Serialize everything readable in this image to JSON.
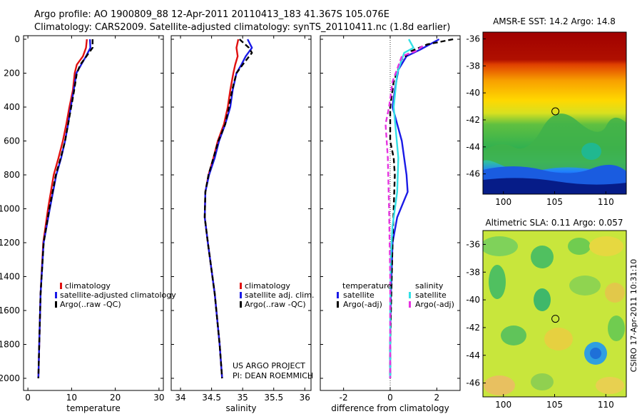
{
  "header": {
    "line1": "Argo profile: AO 1900809_88 12-Apr-2011 20110413_183 41.367S 105.076E",
    "line2": "Climatology: CARS2009. Satellite-adjusted climatology: synTS_20110411.nc (1.8d earlier)"
  },
  "side_caption": "CSIRO 17-Apr-2011 10:31:10",
  "colors": {
    "climatology": "#e01010",
    "satellite": "#1a1ae6",
    "argo": "#000000",
    "cyan": "#33e0e6",
    "magenta": "#e633e0"
  },
  "chart_data": [
    {
      "id": "temperature",
      "type": "line",
      "xlabel": "temperature",
      "ylabel": "",
      "xlim": [
        -1,
        31
      ],
      "ylim": [
        2050,
        0
      ],
      "xticks": [
        0,
        10,
        20,
        30
      ],
      "yticks": [
        0,
        200,
        400,
        600,
        800,
        1000,
        1200,
        1400,
        1600,
        1800,
        2000
      ],
      "series": [
        {
          "name": "climatology",
          "color": "climatology",
          "dash": false,
          "x": [
            13.5,
            13.3,
            12.6,
            11.2,
            10.7,
            10.3,
            9.5,
            8.8,
            8.0,
            7.0,
            5.9,
            4.6,
            3.5,
            2.9,
            2.6,
            2.4
          ],
          "y": [
            0,
            50,
            100,
            150,
            200,
            300,
            400,
            500,
            600,
            700,
            800,
            1000,
            1200,
            1500,
            1800,
            2000
          ]
        },
        {
          "name": "satellite-adjusted climatology",
          "color": "satellite",
          "dash": false,
          "x": [
            14.2,
            14.3,
            13.3,
            12.2,
            11.1,
            10.5,
            9.8,
            9.2,
            8.5,
            7.6,
            6.5,
            5.0,
            3.6,
            2.9,
            2.6,
            2.4
          ],
          "y": [
            0,
            50,
            100,
            150,
            200,
            300,
            400,
            500,
            600,
            700,
            800,
            1000,
            1200,
            1500,
            1800,
            2000
          ]
        },
        {
          "name": "Argo(..raw -QC)",
          "color": "argo",
          "dash": true,
          "x": [
            14.8,
            14.8,
            13.4,
            12.0,
            11.2,
            10.6,
            9.9,
            9.2,
            8.5,
            7.5,
            6.4,
            4.9,
            3.6,
            2.9,
            2.6,
            2.4
          ],
          "y": [
            0,
            50,
            100,
            150,
            200,
            300,
            400,
            500,
            600,
            700,
            800,
            1000,
            1200,
            1500,
            1800,
            2000
          ]
        }
      ],
      "legend": {
        "placement": "lower-right",
        "entries": [
          "climatology",
          "satellite-adjusted climatology",
          "Argo(..raw -QC)"
        ]
      }
    },
    {
      "id": "salinity",
      "type": "line",
      "xlabel": "salinity",
      "ylabel": "",
      "xlim": [
        33.85,
        36.1
      ],
      "ylim": [
        2050,
        0
      ],
      "xticks": [
        34,
        34.5,
        35,
        35.5,
        36
      ],
      "yticks": [
        0,
        200,
        400,
        600,
        800,
        1000,
        1200,
        1400,
        1600,
        1800,
        2000
      ],
      "series": [
        {
          "name": "climatology",
          "color": "climatology",
          "dash": false,
          "x": [
            34.93,
            34.9,
            34.92,
            34.88,
            34.85,
            34.8,
            34.76,
            34.7,
            34.6,
            34.53,
            34.45,
            34.4,
            34.39,
            34.44,
            34.55,
            34.63,
            34.67
          ],
          "y": [
            0,
            50,
            100,
            150,
            200,
            300,
            400,
            500,
            600,
            700,
            800,
            900,
            1050,
            1200,
            1500,
            1800,
            2000
          ]
        },
        {
          "name": "satellite adj. clim.",
          "color": "satellite",
          "dash": false,
          "x": [
            35.08,
            35.15,
            35.05,
            34.98,
            34.9,
            34.84,
            34.8,
            34.72,
            34.62,
            34.55,
            34.46,
            34.4,
            34.39,
            34.44,
            34.55,
            34.63,
            34.67
          ],
          "y": [
            0,
            50,
            100,
            150,
            200,
            300,
            400,
            500,
            600,
            700,
            800,
            900,
            1050,
            1200,
            1500,
            1800,
            2000
          ]
        },
        {
          "name": "Argo(..raw -QC)",
          "color": "argo",
          "dash": true,
          "x": [
            34.95,
            35.1,
            35.15,
            35.0,
            34.9,
            34.83,
            34.78,
            34.72,
            34.61,
            34.53,
            34.45,
            34.4,
            34.39,
            34.44,
            34.55,
            34.63,
            34.67
          ],
          "y": [
            0,
            50,
            80,
            150,
            200,
            300,
            400,
            500,
            600,
            700,
            800,
            900,
            1050,
            1200,
            1500,
            1800,
            2000
          ]
        }
      ],
      "legend": {
        "placement": "lower-right",
        "entries": [
          "climatology",
          "satellite adj. clim.",
          "Argo(..raw -QC)"
        ]
      },
      "annotation": [
        "US ARGO PROJECT",
        "PI: DEAN ROEMMICH"
      ]
    },
    {
      "id": "difference",
      "type": "line",
      "xlabel": "difference from climatology",
      "ylabel": "",
      "xlim": [
        -3,
        3
      ],
      "ylim": [
        2050,
        0
      ],
      "xticks": [
        -2,
        0,
        2
      ],
      "yticks": [
        0,
        200,
        400,
        600,
        800,
        1000,
        1200,
        1400,
        1600,
        1800,
        2000
      ],
      "zero_line": true,
      "series": [
        {
          "name": "temperature satellite",
          "color": "satellite",
          "dash": false,
          "x": [
            2.1,
            1.3,
            0.7,
            0.35,
            0.2,
            0.1,
            0.3,
            0.5,
            0.6,
            0.7,
            0.75,
            0.6,
            0.3,
            0.1,
            0.03,
            0.0,
            0.0
          ],
          "y": [
            0,
            60,
            100,
            180,
            300,
            400,
            500,
            600,
            700,
            800,
            900,
            950,
            1050,
            1200,
            1500,
            1800,
            2000
          ]
        },
        {
          "name": "temperature Argo(-adj)",
          "color": "argo",
          "dash": true,
          "x": [
            2.7,
            1.6,
            0.9,
            0.5,
            0.15,
            0.0,
            0.0,
            0.15,
            0.2,
            0.15,
            0.1,
            0.05,
            0.0,
            0.0
          ],
          "y": [
            0,
            30,
            70,
            120,
            250,
            400,
            600,
            700,
            800,
            1000,
            1200,
            1500,
            1800,
            2000
          ]
        },
        {
          "name": "salinity satellite",
          "color": "cyan",
          "dash": false,
          "x": [
            0.8,
            1.0,
            0.6,
            0.3,
            0.15,
            0.35,
            0.3,
            0.1,
            0.02,
            0.0,
            0.0
          ],
          "y": [
            0,
            50,
            80,
            200,
            400,
            700,
            900,
            1100,
            1300,
            1600,
            2000
          ]
        },
        {
          "name": "salinity Argo(-adj)",
          "color": "magenta",
          "dash": true,
          "x": [
            1.4,
            1.1,
            0.5,
            0.1,
            -0.05,
            -0.2,
            -0.1,
            -0.05,
            0.0,
            0.0
          ],
          "y": [
            40,
            70,
            100,
            250,
            400,
            500,
            700,
            1000,
            1400,
            2000
          ]
        }
      ],
      "legend": {
        "placement": "lower-center",
        "temperature_title": "temperature",
        "salinity_title": "salinity",
        "temperature_entries": [
          "satellite",
          "Argo(-adj)"
        ],
        "salinity_entries": [
          "satellite",
          "Argo(-adj)"
        ]
      }
    },
    {
      "id": "sst-map",
      "type": "heatmap",
      "title": "AMSR-E SST: 14.2 Argo: 14.8",
      "xlim": [
        98,
        112
      ],
      "ylim": [
        -47.5,
        -35.5
      ],
      "xticks": [
        100,
        105,
        110
      ],
      "yticks": [
        -36,
        -38,
        -40,
        -42,
        -44,
        -46
      ],
      "marker": {
        "lon": 105.076,
        "lat": -41.367
      }
    },
    {
      "id": "sla-map",
      "type": "heatmap",
      "title": "Altimetric SLA: 0.11 Argo: 0.057",
      "xlim": [
        98,
        112
      ],
      "ylim": [
        -47,
        -35
      ],
      "xticks": [
        100,
        105,
        110
      ],
      "yticks": [
        -36,
        -38,
        -40,
        -42,
        -44,
        -46
      ],
      "marker": {
        "lon": 105.076,
        "lat": -41.367
      }
    }
  ]
}
